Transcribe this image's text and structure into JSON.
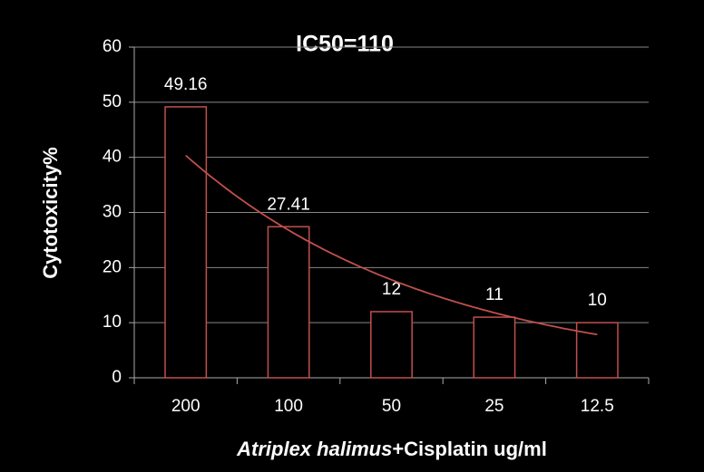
{
  "chart_data": {
    "type": "bar",
    "title": "IC50=110",
    "y_label": "Cytotoxicity%",
    "x_label": [
      "Atriplex halimus",
      "+Cisplatin ug/ml"
    ],
    "categories": [
      "200",
      "100",
      "50",
      "25",
      "12.5"
    ],
    "values": [
      49.16,
      27.41,
      12,
      11,
      10
    ],
    "color": "#c0504d",
    "trendline": "exponential",
    "ylim": [
      0,
      60
    ],
    "yticks": [
      0,
      10,
      20,
      30,
      40,
      50,
      60
    ],
    "grid": true
  }
}
